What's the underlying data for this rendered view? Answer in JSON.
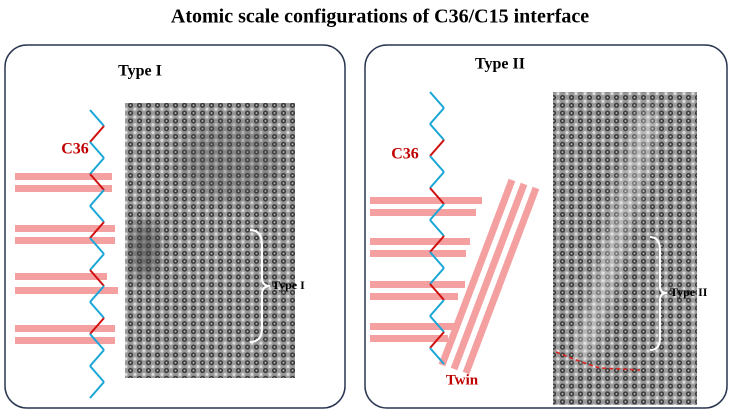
{
  "title": "Atomic scale configurations of C36/C15 interface",
  "panels": [
    {
      "label": "Type I",
      "phase": "C36",
      "interface_label": "Type I"
    },
    {
      "label": "Type II",
      "phase": "C36",
      "twin": "Twin",
      "interface_label": "Type II"
    }
  ]
}
